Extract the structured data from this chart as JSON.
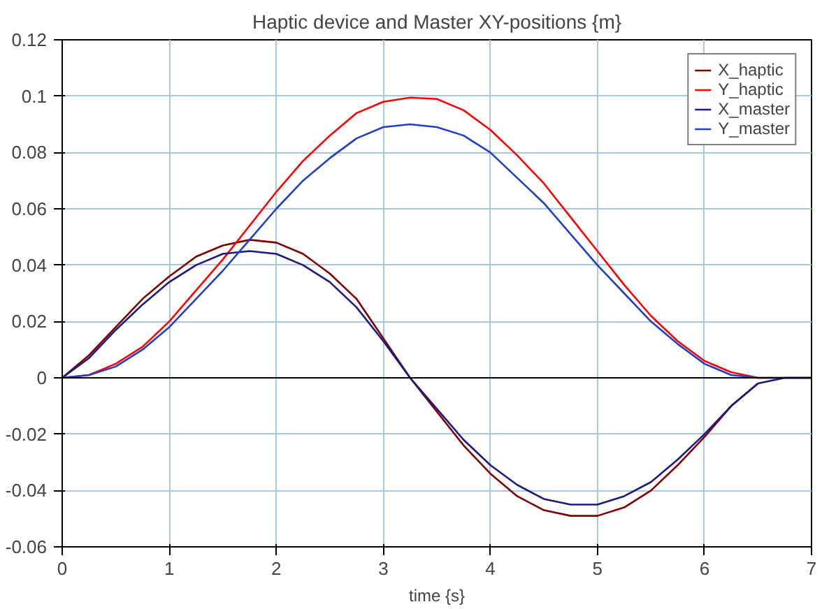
{
  "chart_data": {
    "type": "line",
    "title": "Haptic device and Master XY-positions {m}",
    "xlabel": "time {s}",
    "x": [
      0,
      0.25,
      0.5,
      0.75,
      1,
      1.25,
      1.5,
      1.75,
      2,
      2.25,
      2.5,
      2.75,
      3,
      3.25,
      3.5,
      3.75,
      4,
      4.25,
      4.5,
      4.75,
      5,
      5.25,
      5.5,
      5.75,
      6,
      6.25,
      6.5,
      6.75,
      7
    ],
    "series": [
      {
        "name": "X_haptic",
        "color": "#800000",
        "values": [
          0,
          0.008,
          0.018,
          0.028,
          0.036,
          0.043,
          0.047,
          0.049,
          0.048,
          0.044,
          0.037,
          0.028,
          0.014,
          0,
          -0.012,
          -0.024,
          -0.034,
          -0.042,
          -0.047,
          -0.049,
          -0.049,
          -0.046,
          -0.04,
          -0.031,
          -0.021,
          -0.01,
          -0.002,
          null,
          null
        ]
      },
      {
        "name": "Y_haptic",
        "color": "#ff0000",
        "values": [
          0,
          0.001,
          0.005,
          0.011,
          0.02,
          0.031,
          0.042,
          0.054,
          0.066,
          0.077,
          0.086,
          0.094,
          0.098,
          0.0995,
          0.099,
          0.095,
          0.088,
          0.079,
          0.069,
          0.057,
          0.045,
          0.033,
          0.022,
          0.013,
          0.006,
          0.002,
          0,
          0,
          0
        ]
      },
      {
        "name": "X_master",
        "color": "#1a1a80",
        "values": [
          0,
          0.007,
          0.017,
          0.026,
          0.034,
          0.04,
          0.044,
          0.045,
          0.044,
          0.04,
          0.034,
          0.025,
          0.013,
          0,
          -0.011,
          -0.022,
          -0.031,
          -0.038,
          -0.043,
          -0.045,
          -0.045,
          -0.042,
          -0.037,
          -0.029,
          -0.02,
          -0.01,
          -0.002,
          0,
          0
        ]
      },
      {
        "name": "Y_master",
        "color": "#2040c0",
        "values": [
          0,
          0.001,
          0.004,
          0.01,
          0.018,
          0.028,
          0.038,
          0.049,
          0.06,
          0.07,
          0.078,
          0.085,
          0.089,
          0.09,
          0.089,
          0.086,
          0.08,
          0.071,
          0.062,
          0.051,
          0.04,
          0.03,
          0.02,
          0.012,
          0.005,
          0.001,
          0,
          0,
          0
        ]
      }
    ],
    "xlim": [
      0,
      7
    ],
    "xticks": [
      0,
      1,
      2,
      3,
      4,
      5,
      6,
      7
    ],
    "ylim": [
      -0.06,
      0.12
    ],
    "yticks": [
      -0.06,
      -0.04,
      -0.02,
      0,
      0.02,
      0.04,
      0.06,
      0.08,
      0.1,
      0.12
    ],
    "grid": true,
    "legend": "top right",
    "ref_lines": [
      {
        "axis": "y",
        "value": 0,
        "color": "#000000"
      }
    ]
  }
}
